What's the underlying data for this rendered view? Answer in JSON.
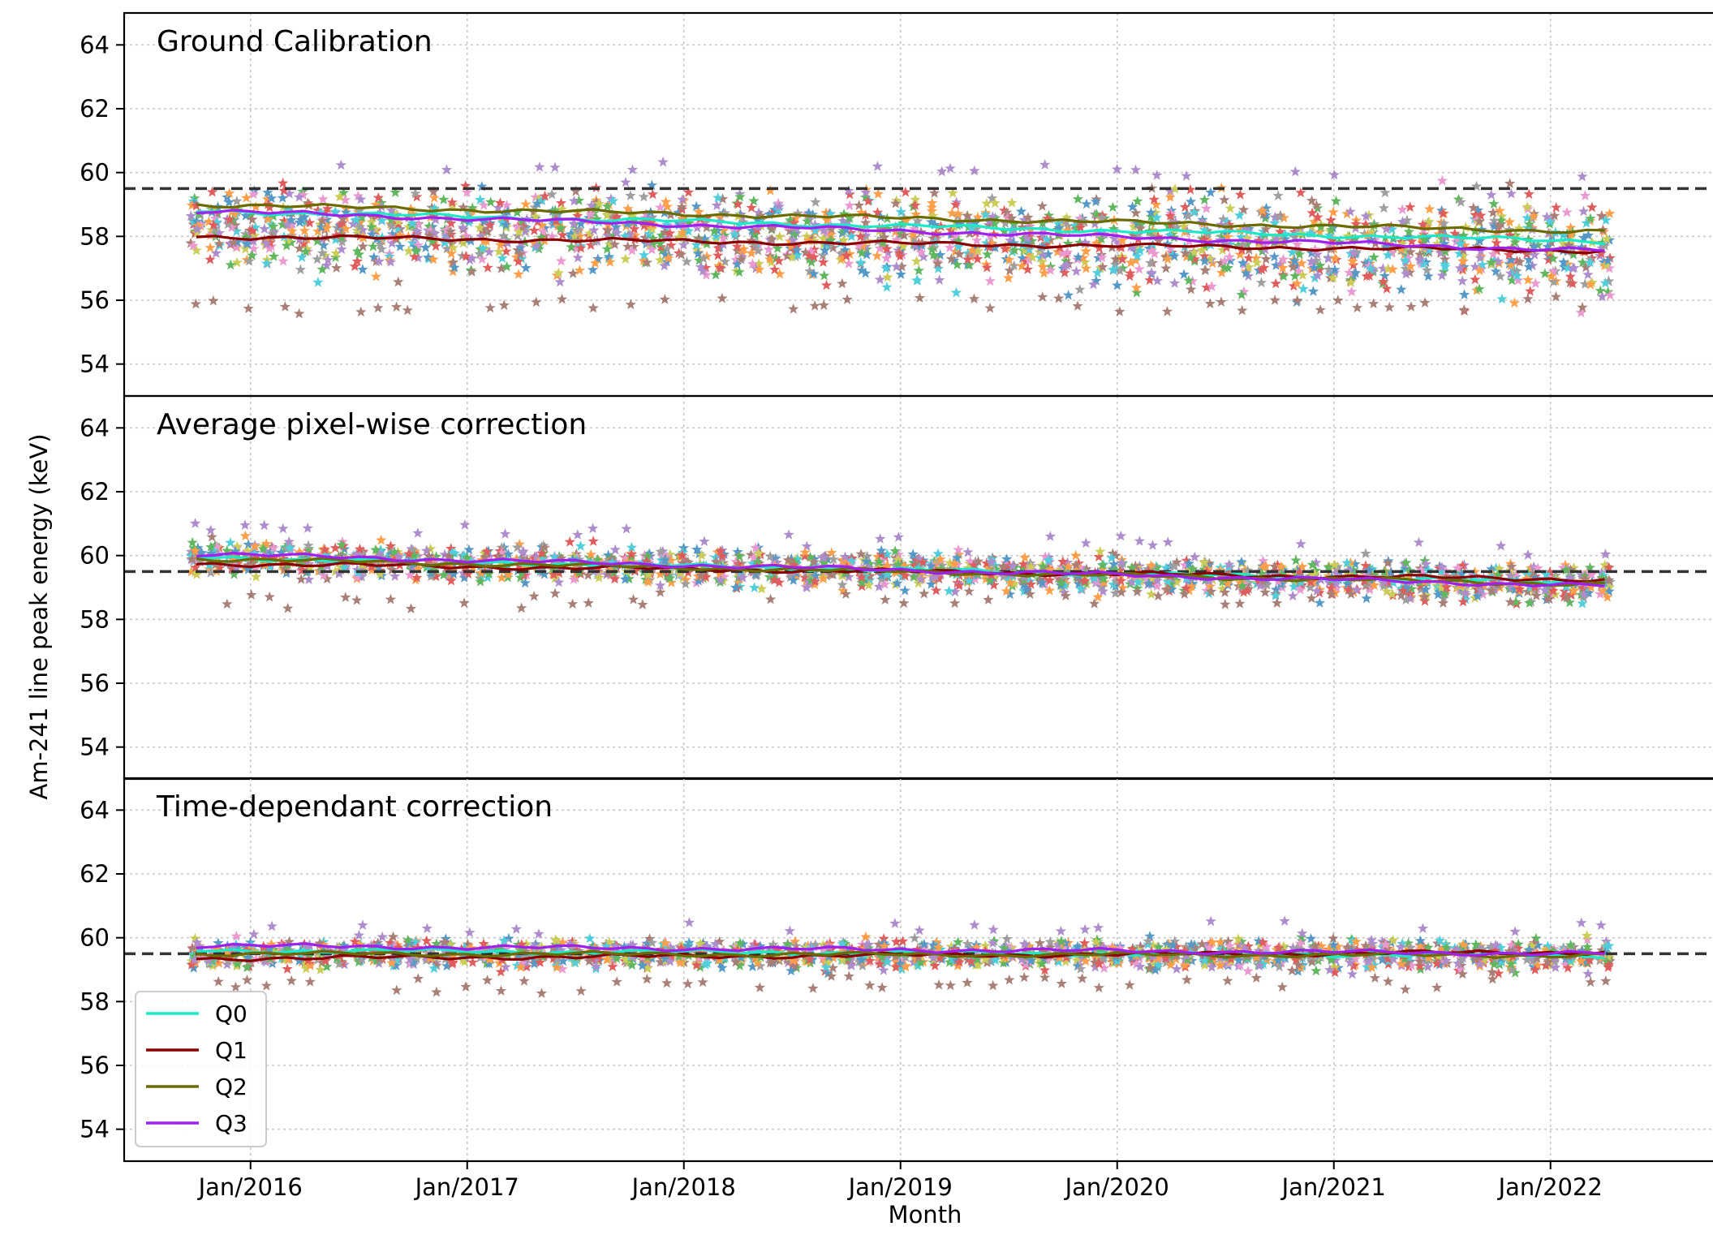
{
  "chart_data": {
    "type": "scatter",
    "xlabel": "Month",
    "ylabel": "Am-241 line peak energy (keV)",
    "x_tick_labels": [
      "Jan/2016",
      "Jan/2017",
      "Jan/2018",
      "Jan/2019",
      "Jan/2020",
      "Jan/2021",
      "Jan/2022"
    ],
    "x_tick_dates": [
      "2016-01",
      "2017-01",
      "2018-01",
      "2019-01",
      "2020-01",
      "2021-01",
      "2022-01"
    ],
    "xlim": [
      "2015-06",
      "2022-10"
    ],
    "data_range": [
      "2015-10",
      "2022-04"
    ],
    "ylim": [
      53,
      65
    ],
    "y_ticks": [
      54,
      56,
      58,
      60,
      62,
      64
    ],
    "reference_line": 59.5,
    "grid": true,
    "legend_position": "bottom-left",
    "legend": [
      {
        "name": "Q0",
        "color": "#1de9c8"
      },
      {
        "name": "Q1",
        "color": "#8b0000"
      },
      {
        "name": "Q2",
        "color": "#6b6b00"
      },
      {
        "name": "Q3",
        "color": "#a020f0"
      }
    ],
    "pixel_colors": [
      "#1f77b4",
      "#ff7f0e",
      "#2ca02c",
      "#d62728",
      "#9467bd",
      "#8c564b",
      "#e377c2",
      "#7f7f7f",
      "#bcbd22",
      "#17becf"
    ],
    "panels": [
      {
        "title": "Ground Calibration",
        "series": [
          {
            "name": "Q0",
            "start": 58.8,
            "end": 57.85
          },
          {
            "name": "Q1",
            "start": 58.0,
            "end": 57.55
          },
          {
            "name": "Q2",
            "start": 59.0,
            "end": 58.15
          },
          {
            "name": "Q3",
            "start": 58.8,
            "end": 57.55
          }
        ],
        "scatter_center": 58.3,
        "scatter_spread": 1.0,
        "scatter_end_center": 57.6,
        "scatter_end_spread": 1.3,
        "outlier_low": 56.0
      },
      {
        "title": "Average pixel-wise correction",
        "series": [
          {
            "name": "Q0",
            "start": 59.95,
            "end": 59.15
          },
          {
            "name": "Q1",
            "start": 59.75,
            "end": 59.25
          },
          {
            "name": "Q2",
            "start": 59.9,
            "end": 59.1
          },
          {
            "name": "Q3",
            "start": 60.05,
            "end": 59.05
          }
        ],
        "scatter_center": 59.95,
        "scatter_spread": 0.45,
        "scatter_end_center": 59.1,
        "scatter_end_spread": 0.5,
        "outlier_low": 58.8
      },
      {
        "title": "Time-dependant correction",
        "series": [
          {
            "name": "Q0",
            "start": 59.6,
            "end": 59.45
          },
          {
            "name": "Q1",
            "start": 59.35,
            "end": 59.55
          },
          {
            "name": "Q2",
            "start": 59.5,
            "end": 59.45
          },
          {
            "name": "Q3",
            "start": 59.75,
            "end": 59.5
          }
        ],
        "scatter_center": 59.5,
        "scatter_spread": 0.35,
        "scatter_end_center": 59.45,
        "scatter_end_spread": 0.4,
        "outlier_low": 58.7
      }
    ]
  }
}
